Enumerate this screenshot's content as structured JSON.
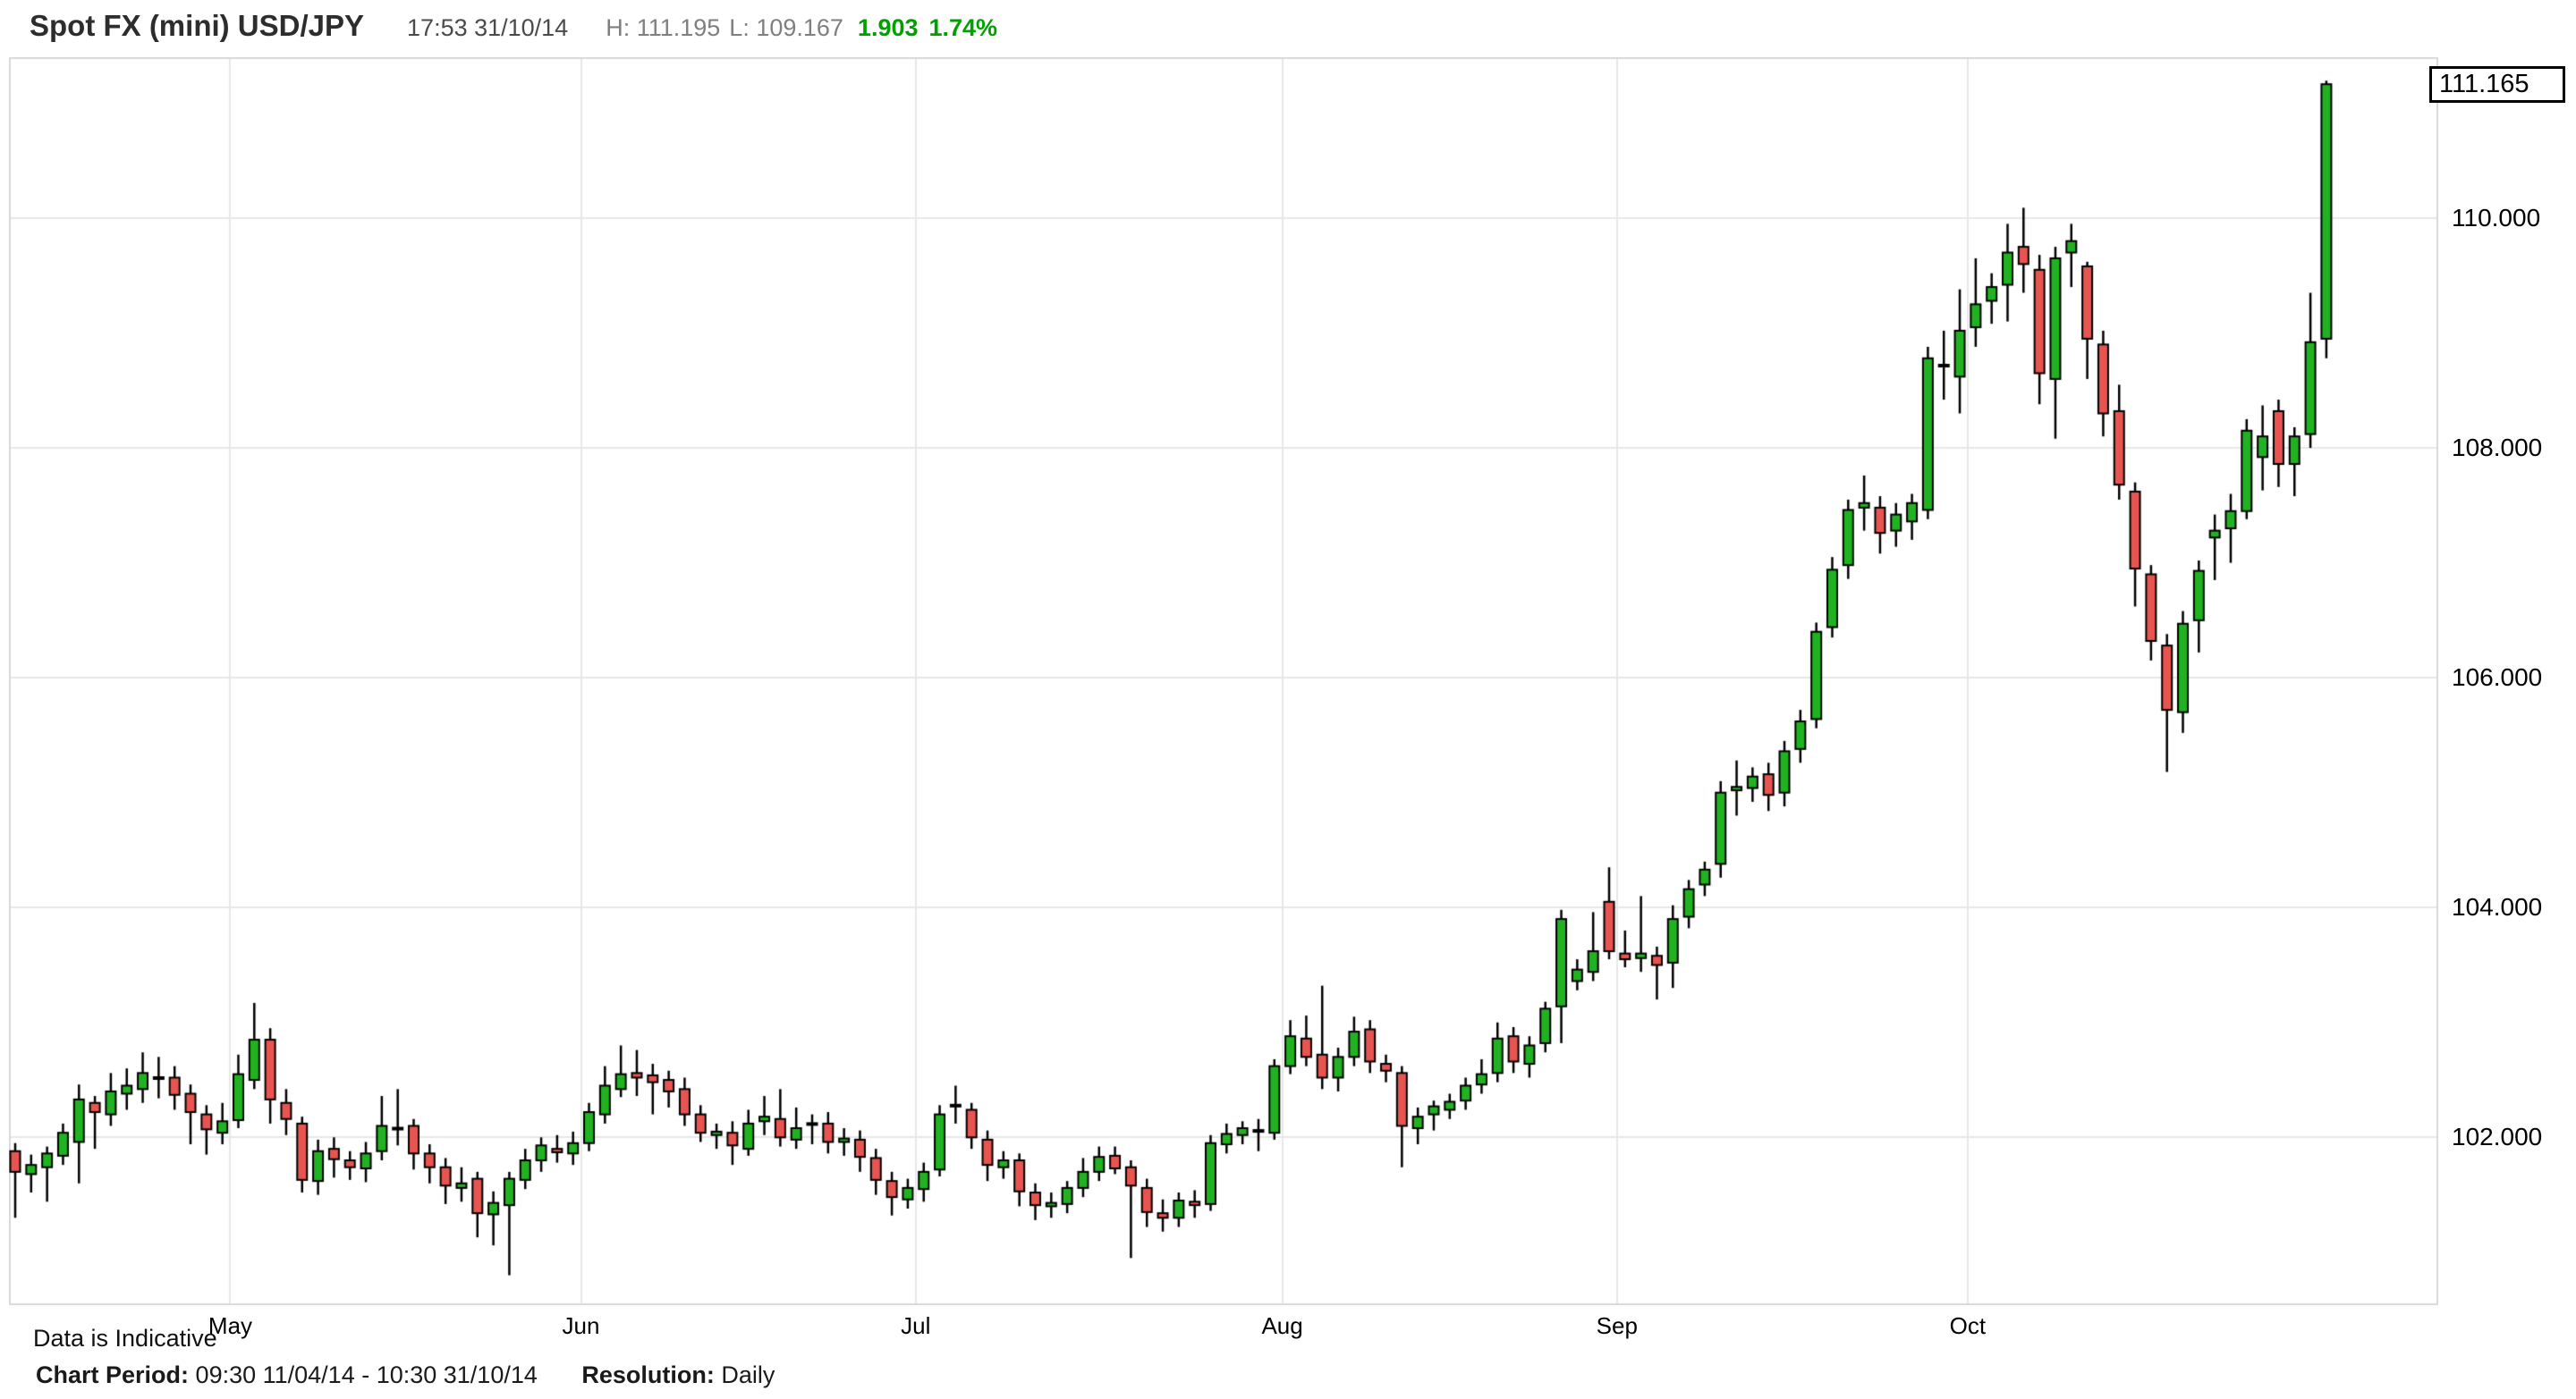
{
  "header": {
    "title": "Spot FX (mini) USD/JPY",
    "timestamp": "17:53 31/10/14",
    "high_label": "H: 111.195",
    "low_label": "L: 109.167",
    "change": "1.903",
    "change_pct": "1.74%"
  },
  "price_box": {
    "value": "111.165"
  },
  "watermark": "Data is Indicative",
  "footer": {
    "chart_period_label": "Chart Period:",
    "chart_period": "09:30 11/04/14 - 10:30 31/10/14",
    "resolution_label": "Resolution:",
    "resolution": "Daily"
  },
  "colors": {
    "up": "#21b221",
    "down": "#e8544f",
    "outline": "#000000",
    "grid": "#e7e7e7",
    "border": "#d9d9d9",
    "change_green": "#00a000"
  },
  "chart_data": {
    "type": "candlestick",
    "title": "Spot FX (mini) USD/JPY",
    "resolution": "Daily",
    "ylim": [
      100.54,
      111.4
    ],
    "grid": true,
    "y_ticks": [
      {
        "label": "110.000",
        "price": 110.0
      },
      {
        "label": "108.000",
        "price": 108.0
      },
      {
        "label": "106.000",
        "price": 106.0
      },
      {
        "label": "104.000",
        "price": 104.0
      },
      {
        "label": "102.000",
        "price": 102.0
      }
    ],
    "x_ticks": [
      {
        "label": "May",
        "index": 14
      },
      {
        "label": "Jun",
        "index": 36
      },
      {
        "label": "Jul",
        "index": 57
      },
      {
        "label": "Aug",
        "index": 80
      },
      {
        "label": "Sep",
        "index": 101
      },
      {
        "label": "Oct",
        "index": 123
      }
    ],
    "ohlc_note": "each row = [open, high, low, close], daily 11/04/14 - 31/10/14",
    "candles": [
      [
        101.88,
        101.95,
        101.3,
        101.7
      ],
      [
        101.68,
        101.85,
        101.52,
        101.76
      ],
      [
        101.74,
        101.92,
        101.44,
        101.86
      ],
      [
        101.84,
        102.12,
        101.76,
        102.04
      ],
      [
        101.96,
        102.46,
        101.6,
        102.33
      ],
      [
        102.3,
        102.36,
        101.9,
        102.22
      ],
      [
        102.2,
        102.56,
        102.1,
        102.4
      ],
      [
        102.38,
        102.6,
        102.24,
        102.45
      ],
      [
        102.42,
        102.74,
        102.3,
        102.56
      ],
      [
        102.52,
        102.7,
        102.34,
        102.5
      ],
      [
        102.52,
        102.62,
        102.24,
        102.37
      ],
      [
        102.38,
        102.46,
        101.94,
        102.22
      ],
      [
        102.2,
        102.28,
        101.85,
        102.07
      ],
      [
        102.04,
        102.3,
        101.94,
        102.14
      ],
      [
        102.15,
        102.72,
        102.08,
        102.55
      ],
      [
        102.5,
        103.17,
        102.42,
        102.85
      ],
      [
        102.85,
        102.95,
        102.12,
        102.33
      ],
      [
        102.3,
        102.42,
        102.02,
        102.16
      ],
      [
        102.12,
        102.18,
        101.52,
        101.63
      ],
      [
        101.62,
        101.98,
        101.5,
        101.88
      ],
      [
        101.9,
        102.0,
        101.65,
        101.81
      ],
      [
        101.8,
        101.88,
        101.63,
        101.74
      ],
      [
        101.73,
        101.96,
        101.61,
        101.86
      ],
      [
        101.88,
        102.36,
        101.8,
        102.1
      ],
      [
        102.08,
        102.42,
        101.93,
        102.08
      ],
      [
        102.1,
        102.16,
        101.72,
        101.86
      ],
      [
        101.86,
        101.94,
        101.6,
        101.74
      ],
      [
        101.74,
        101.82,
        101.42,
        101.58
      ],
      [
        101.56,
        101.74,
        101.44,
        101.6
      ],
      [
        101.64,
        101.7,
        101.13,
        101.34
      ],
      [
        101.33,
        101.53,
        101.06,
        101.43
      ],
      [
        101.41,
        101.7,
        100.8,
        101.64
      ],
      [
        101.63,
        101.9,
        101.55,
        101.8
      ],
      [
        101.8,
        102.0,
        101.7,
        101.93
      ],
      [
        101.9,
        102.02,
        101.78,
        101.87
      ],
      [
        101.86,
        102.05,
        101.76,
        101.95
      ],
      [
        101.95,
        102.3,
        101.88,
        102.22
      ],
      [
        102.2,
        102.62,
        102.12,
        102.45
      ],
      [
        102.42,
        102.8,
        102.35,
        102.55
      ],
      [
        102.56,
        102.76,
        102.36,
        102.52
      ],
      [
        102.54,
        102.64,
        102.2,
        102.48
      ],
      [
        102.5,
        102.58,
        102.26,
        102.4
      ],
      [
        102.42,
        102.52,
        102.1,
        102.2
      ],
      [
        102.2,
        102.28,
        101.96,
        102.04
      ],
      [
        102.02,
        102.12,
        101.9,
        102.05
      ],
      [
        102.04,
        102.14,
        101.76,
        101.93
      ],
      [
        101.9,
        102.24,
        101.84,
        102.12
      ],
      [
        102.14,
        102.36,
        102.02,
        102.18
      ],
      [
        102.16,
        102.42,
        101.92,
        102.0
      ],
      [
        101.98,
        102.26,
        101.9,
        102.08
      ],
      [
        102.1,
        102.2,
        101.94,
        102.12
      ],
      [
        102.12,
        102.22,
        101.86,
        101.96
      ],
      [
        101.96,
        102.08,
        101.84,
        101.99
      ],
      [
        101.98,
        102.06,
        101.7,
        101.83
      ],
      [
        101.82,
        101.9,
        101.5,
        101.63
      ],
      [
        101.62,
        101.7,
        101.32,
        101.48
      ],
      [
        101.46,
        101.64,
        101.38,
        101.56
      ],
      [
        101.55,
        101.78,
        101.44,
        101.7
      ],
      [
        101.72,
        102.28,
        101.66,
        102.2
      ],
      [
        102.28,
        102.45,
        102.12,
        102.26
      ],
      [
        102.24,
        102.3,
        101.9,
        102.0
      ],
      [
        101.98,
        102.06,
        101.62,
        101.76
      ],
      [
        101.74,
        101.88,
        101.64,
        101.8
      ],
      [
        101.8,
        101.86,
        101.4,
        101.53
      ],
      [
        101.52,
        101.6,
        101.28,
        101.41
      ],
      [
        101.4,
        101.52,
        101.3,
        101.43
      ],
      [
        101.42,
        101.62,
        101.34,
        101.56
      ],
      [
        101.56,
        101.82,
        101.48,
        101.7
      ],
      [
        101.7,
        101.92,
        101.62,
        101.83
      ],
      [
        101.84,
        101.92,
        101.68,
        101.73
      ],
      [
        101.74,
        101.8,
        100.95,
        101.58
      ],
      [
        101.56,
        101.64,
        101.22,
        101.35
      ],
      [
        101.34,
        101.46,
        101.18,
        101.3
      ],
      [
        101.3,
        101.52,
        101.22,
        101.45
      ],
      [
        101.44,
        101.54,
        101.3,
        101.41
      ],
      [
        101.42,
        102.02,
        101.36,
        101.95
      ],
      [
        101.94,
        102.12,
        101.86,
        102.03
      ],
      [
        102.02,
        102.14,
        101.94,
        102.08
      ],
      [
        102.06,
        102.16,
        101.88,
        102.04
      ],
      [
        102.04,
        102.68,
        101.98,
        102.62
      ],
      [
        102.62,
        103.02,
        102.55,
        102.88
      ],
      [
        102.86,
        103.06,
        102.62,
        102.7
      ],
      [
        102.72,
        103.32,
        102.42,
        102.52
      ],
      [
        102.52,
        102.78,
        102.4,
        102.7
      ],
      [
        102.7,
        103.05,
        102.62,
        102.92
      ],
      [
        102.94,
        103.02,
        102.56,
        102.66
      ],
      [
        102.64,
        102.72,
        102.48,
        102.58
      ],
      [
        102.56,
        102.62,
        101.74,
        102.1
      ],
      [
        102.08,
        102.26,
        101.94,
        102.18
      ],
      [
        102.2,
        102.32,
        102.06,
        102.27
      ],
      [
        102.24,
        102.38,
        102.16,
        102.31
      ],
      [
        102.32,
        102.52,
        102.24,
        102.45
      ],
      [
        102.46,
        102.68,
        102.38,
        102.55
      ],
      [
        102.56,
        103.0,
        102.48,
        102.86
      ],
      [
        102.88,
        102.96,
        102.56,
        102.66
      ],
      [
        102.64,
        102.88,
        102.52,
        102.8
      ],
      [
        102.82,
        103.18,
        102.74,
        103.12
      ],
      [
        103.14,
        103.98,
        102.82,
        103.9
      ],
      [
        103.36,
        103.55,
        103.28,
        103.46
      ],
      [
        103.44,
        103.96,
        103.36,
        103.62
      ],
      [
        104.05,
        104.35,
        103.55,
        103.62
      ],
      [
        103.6,
        103.8,
        103.48,
        103.55
      ],
      [
        103.56,
        104.1,
        103.44,
        103.6
      ],
      [
        103.58,
        103.66,
        103.2,
        103.5
      ],
      [
        103.52,
        104.02,
        103.3,
        103.9
      ],
      [
        103.92,
        104.24,
        103.82,
        104.16
      ],
      [
        104.2,
        104.4,
        104.1,
        104.33
      ],
      [
        104.38,
        105.1,
        104.26,
        105.0
      ],
      [
        105.02,
        105.28,
        104.8,
        105.05
      ],
      [
        105.04,
        105.22,
        104.92,
        105.14
      ],
      [
        105.16,
        105.26,
        104.84,
        104.98
      ],
      [
        105.0,
        105.45,
        104.88,
        105.36
      ],
      [
        105.38,
        105.72,
        105.26,
        105.62
      ],
      [
        105.64,
        106.48,
        105.56,
        106.4
      ],
      [
        106.44,
        107.05,
        106.35,
        106.94
      ],
      [
        106.98,
        107.55,
        106.86,
        107.46
      ],
      [
        107.48,
        107.76,
        107.28,
        107.52
      ],
      [
        107.48,
        107.58,
        107.08,
        107.26
      ],
      [
        107.28,
        107.52,
        107.14,
        107.42
      ],
      [
        107.36,
        107.6,
        107.2,
        107.52
      ],
      [
        107.46,
        108.88,
        107.38,
        108.78
      ],
      [
        108.72,
        109.02,
        108.42,
        108.7
      ],
      [
        108.62,
        109.38,
        108.3,
        109.02
      ],
      [
        109.05,
        109.65,
        108.88,
        109.25
      ],
      [
        109.28,
        109.52,
        109.08,
        109.4
      ],
      [
        109.42,
        109.95,
        109.1,
        109.7
      ],
      [
        109.75,
        110.09,
        109.35,
        109.6
      ],
      [
        109.55,
        109.68,
        108.38,
        108.65
      ],
      [
        108.6,
        109.75,
        108.08,
        109.65
      ],
      [
        109.7,
        109.95,
        109.4,
        109.8
      ],
      [
        109.58,
        109.62,
        108.6,
        108.95
      ],
      [
        108.9,
        109.02,
        108.1,
        108.3
      ],
      [
        108.32,
        108.55,
        107.55,
        107.68
      ],
      [
        107.62,
        107.7,
        106.62,
        106.95
      ],
      [
        106.9,
        106.98,
        106.15,
        106.32
      ],
      [
        106.28,
        106.38,
        105.18,
        105.72
      ],
      [
        105.7,
        106.58,
        105.52,
        106.47
      ],
      [
        106.5,
        107.02,
        106.22,
        106.93
      ],
      [
        107.22,
        107.42,
        106.85,
        107.28
      ],
      [
        107.3,
        107.6,
        107.0,
        107.45
      ],
      [
        107.45,
        108.25,
        107.38,
        108.15
      ],
      [
        107.92,
        108.37,
        107.63,
        108.1
      ],
      [
        108.32,
        108.42,
        107.66,
        107.86
      ],
      [
        107.86,
        108.18,
        107.58,
        108.1
      ],
      [
        108.12,
        109.35,
        108.0,
        108.92
      ],
      [
        108.95,
        111.195,
        108.78,
        111.165
      ]
    ]
  }
}
